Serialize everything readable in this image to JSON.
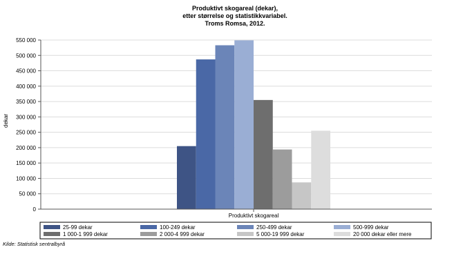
{
  "chart_data": {
    "type": "bar",
    "title_lines": [
      "Produktivt skogareal (dekar),",
      "etter størrelse og statistikkvariabel.",
      "Troms Romsa, 2012."
    ],
    "ylabel": "dekar",
    "xlabel": "",
    "categories": [
      "Produktivt skogareal"
    ],
    "ylim": [
      0,
      550000
    ],
    "yticks": [
      0,
      50000,
      100000,
      150000,
      200000,
      250000,
      300000,
      350000,
      400000,
      450000,
      500000,
      550000
    ],
    "ytick_labels": [
      "0",
      "50 000",
      "100 000",
      "150 000",
      "200 000",
      "250 000",
      "300 000",
      "350 000",
      "400 000",
      "450 000",
      "500 000",
      "550 000"
    ],
    "grid": true,
    "legend_position": "bottom",
    "series": [
      {
        "name": "25-99 dekar",
        "values": [
          205000
        ],
        "color": "#3e5485"
      },
      {
        "name": "100-249 dekar",
        "values": [
          487000
        ],
        "color": "#4a68a6"
      },
      {
        "name": "250-499 dekar",
        "values": [
          533000
        ],
        "color": "#6b85b8"
      },
      {
        "name": "500-999 dekar",
        "values": [
          549000
        ],
        "color": "#9aaed4"
      },
      {
        "name": "1 000-1 999 dekar",
        "values": [
          355000
        ],
        "color": "#6e6e6e"
      },
      {
        "name": "2 000-4 999 dekar",
        "values": [
          194000
        ],
        "color": "#9c9c9c"
      },
      {
        "name": "5 000-19 999 dekar",
        "values": [
          87000
        ],
        "color": "#c6c6c6"
      },
      {
        "name": "20 000 dekar eller mere",
        "values": [
          255000
        ],
        "color": "#dddddd"
      }
    ]
  },
  "source": "Kilde: Statistisk sentralbyrå"
}
